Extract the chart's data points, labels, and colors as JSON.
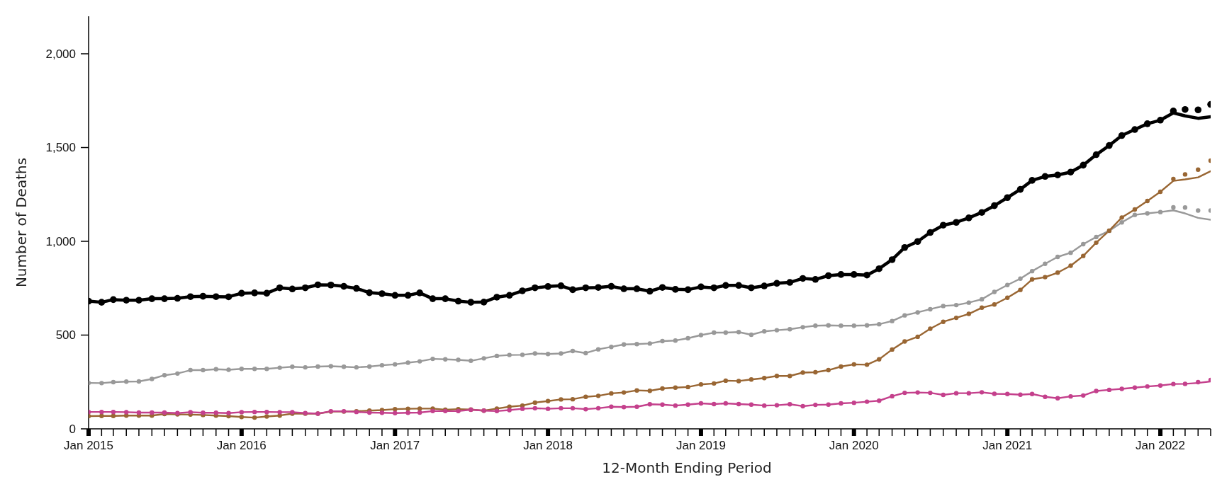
{
  "chart_data": {
    "type": "line",
    "xlabel": "12-Month Ending Period",
    "ylabel": "Number of Deaths",
    "marker": "circle",
    "x": [
      "2015-01",
      "2015-02",
      "2015-03",
      "2015-04",
      "2015-05",
      "2015-06",
      "2015-07",
      "2015-08",
      "2015-09",
      "2015-10",
      "2015-11",
      "2015-12",
      "2016-01",
      "2016-02",
      "2016-03",
      "2016-04",
      "2016-05",
      "2016-06",
      "2016-07",
      "2016-08",
      "2016-09",
      "2016-10",
      "2016-11",
      "2016-12",
      "2017-01",
      "2017-02",
      "2017-03",
      "2017-04",
      "2017-05",
      "2017-06",
      "2017-07",
      "2017-08",
      "2017-09",
      "2017-10",
      "2017-11",
      "2017-12",
      "2018-01",
      "2018-02",
      "2018-03",
      "2018-04",
      "2018-05",
      "2018-06",
      "2018-07",
      "2018-08",
      "2018-09",
      "2018-10",
      "2018-11",
      "2018-12",
      "2019-01",
      "2019-02",
      "2019-03",
      "2019-04",
      "2019-05",
      "2019-06",
      "2019-07",
      "2019-08",
      "2019-09",
      "2019-10",
      "2019-11",
      "2019-12",
      "2020-01",
      "2020-02",
      "2020-03",
      "2020-04",
      "2020-05",
      "2020-06",
      "2020-07",
      "2020-08",
      "2020-09",
      "2020-10",
      "2020-11",
      "2020-12",
      "2021-01",
      "2021-02",
      "2021-03",
      "2021-04",
      "2021-05",
      "2021-06",
      "2021-07",
      "2021-08",
      "2021-09",
      "2021-10",
      "2021-11",
      "2021-12",
      "2022-01",
      "2022-02",
      "2022-03",
      "2022-04",
      "2022-05"
    ],
    "xlim": [
      "2015-01",
      "2022-05"
    ],
    "xticks": [
      {
        "value": "2015-01",
        "label": "Jan 2015"
      },
      {
        "value": "2015-02",
        "label": null
      },
      {
        "value": "2015-03",
        "label": null
      },
      {
        "value": "2015-04",
        "label": null
      },
      {
        "value": "2015-05",
        "label": null
      },
      {
        "value": "2015-06",
        "label": null
      },
      {
        "value": "2015-07",
        "label": null
      },
      {
        "value": "2015-08",
        "label": null
      },
      {
        "value": "2015-09",
        "label": null
      },
      {
        "value": "2015-10",
        "label": null
      },
      {
        "value": "2015-11",
        "label": null
      },
      {
        "value": "2015-12",
        "label": null
      },
      {
        "value": "2016-01",
        "label": "Jan 2016"
      },
      {
        "value": "2016-02",
        "label": null
      },
      {
        "value": "2016-03",
        "label": null
      },
      {
        "value": "2016-04",
        "label": null
      },
      {
        "value": "2016-05",
        "label": null
      },
      {
        "value": "2016-06",
        "label": null
      },
      {
        "value": "2016-07",
        "label": null
      },
      {
        "value": "2016-08",
        "label": null
      },
      {
        "value": "2016-09",
        "label": null
      },
      {
        "value": "2016-10",
        "label": null
      },
      {
        "value": "2016-11",
        "label": null
      },
      {
        "value": "2016-12",
        "label": null
      },
      {
        "value": "2017-01",
        "label": "Jan 2017"
      },
      {
        "value": "2017-02",
        "label": null
      },
      {
        "value": "2017-03",
        "label": null
      },
      {
        "value": "2017-04",
        "label": null
      },
      {
        "value": "2017-05",
        "label": null
      },
      {
        "value": "2017-06",
        "label": null
      },
      {
        "value": "2017-07",
        "label": null
      },
      {
        "value": "2017-08",
        "label": null
      },
      {
        "value": "2017-09",
        "label": null
      },
      {
        "value": "2017-10",
        "label": null
      },
      {
        "value": "2017-11",
        "label": null
      },
      {
        "value": "2017-12",
        "label": null
      },
      {
        "value": "2018-01",
        "label": "Jan 2018"
      },
      {
        "value": "2018-02",
        "label": null
      },
      {
        "value": "2018-03",
        "label": null
      },
      {
        "value": "2018-04",
        "label": null
      },
      {
        "value": "2018-05",
        "label": null
      },
      {
        "value": "2018-06",
        "label": null
      },
      {
        "value": "2018-07",
        "label": null
      },
      {
        "value": "2018-08",
        "label": null
      },
      {
        "value": "2018-09",
        "label": null
      },
      {
        "value": "2018-10",
        "label": null
      },
      {
        "value": "2018-11",
        "label": null
      },
      {
        "value": "2018-12",
        "label": null
      },
      {
        "value": "2019-01",
        "label": "Jan 2019"
      },
      {
        "value": "2019-02",
        "label": null
      },
      {
        "value": "2019-03",
        "label": null
      },
      {
        "value": "2019-04",
        "label": null
      },
      {
        "value": "2019-05",
        "label": null
      },
      {
        "value": "2019-06",
        "label": null
      },
      {
        "value": "2019-07",
        "label": null
      },
      {
        "value": "2019-08",
        "label": null
      },
      {
        "value": "2019-09",
        "label": null
      },
      {
        "value": "2019-10",
        "label": null
      },
      {
        "value": "2019-11",
        "label": null
      },
      {
        "value": "2019-12",
        "label": null
      },
      {
        "value": "2020-01",
        "label": "Jan 2020"
      },
      {
        "value": "2020-02",
        "label": null
      },
      {
        "value": "2020-03",
        "label": null
      },
      {
        "value": "2020-04",
        "label": null
      },
      {
        "value": "2020-05",
        "label": null
      },
      {
        "value": "2020-06",
        "label": null
      },
      {
        "value": "2020-07",
        "label": null
      },
      {
        "value": "2020-08",
        "label": null
      },
      {
        "value": "2020-09",
        "label": null
      },
      {
        "value": "2020-10",
        "label": null
      },
      {
        "value": "2020-11",
        "label": null
      },
      {
        "value": "2020-12",
        "label": null
      },
      {
        "value": "2021-01",
        "label": "Jan 2021"
      },
      {
        "value": "2021-02",
        "label": null
      },
      {
        "value": "2021-03",
        "label": null
      },
      {
        "value": "2021-04",
        "label": null
      },
      {
        "value": "2021-05",
        "label": null
      },
      {
        "value": "2021-06",
        "label": null
      },
      {
        "value": "2021-07",
        "label": null
      },
      {
        "value": "2021-08",
        "label": null
      },
      {
        "value": "2021-09",
        "label": null
      },
      {
        "value": "2021-10",
        "label": null
      },
      {
        "value": "2021-11",
        "label": null
      },
      {
        "value": "2021-12",
        "label": null
      },
      {
        "value": "2022-01",
        "label": "Jan 2022"
      },
      {
        "value": "2022-02",
        "label": null
      },
      {
        "value": "2022-03",
        "label": null
      },
      {
        "value": "2022-04",
        "label": null
      },
      {
        "value": "2022-05",
        "label": null
      }
    ],
    "ylim": [
      0,
      2200
    ],
    "yticks": [
      0,
      500,
      {
        "value": 1000,
        "label": "1,000"
      },
      {
        "value": 1500,
        "label": "1,500"
      },
      {
        "value": 2000,
        "label": "2,000"
      }
    ],
    "series": [
      {
        "type": "line",
        "marker": "none",
        "color": "#999999",
        "values": [
          245,
          244,
          249,
          252,
          253,
          266,
          286,
          295,
          313,
          313,
          318,
          315,
          320,
          320,
          320,
          326,
          331,
          328,
          332,
          334,
          331,
          328,
          332,
          339,
          344,
          353,
          360,
          373,
          371,
          368,
          363,
          376,
          389,
          394,
          395,
          402,
          399,
          402,
          415,
          404,
          424,
          437,
          450,
          452,
          455,
          468,
          471,
          483,
          500,
          513,
          513,
          516,
          502,
          520,
          526,
          531,
          542,
          550,
          552,
          550,
          550,
          552,
          558,
          575,
          605,
          621,
          638,
          655,
          660,
          673,
          691,
          730,
          767,
          801,
          841,
          880,
          917,
          939,
          985,
          1023,
          1056,
          1101,
          1141,
          1149,
          1156,
          1165,
          1149,
          1125,
          1115
        ]
      },
      {
        "type": "scatter",
        "color": "#999999",
        "values": [
          245,
          244,
          249,
          252,
          253,
          266,
          286,
          295,
          313,
          313,
          318,
          315,
          320,
          320,
          320,
          326,
          331,
          328,
          332,
          334,
          331,
          328,
          332,
          339,
          344,
          353,
          360,
          373,
          371,
          368,
          363,
          376,
          389,
          394,
          395,
          402,
          399,
          402,
          415,
          404,
          424,
          437,
          450,
          452,
          455,
          468,
          471,
          483,
          500,
          513,
          513,
          516,
          502,
          520,
          526,
          531,
          542,
          550,
          552,
          550,
          550,
          552,
          558,
          575,
          605,
          621,
          638,
          655,
          660,
          673,
          691,
          730,
          767,
          801,
          841,
          880,
          917,
          939,
          985,
          1023,
          1056,
          1101,
          1141,
          1149,
          1156,
          1181,
          1180,
          1164,
          1164
        ]
      },
      {
        "type": "line",
        "marker": "none",
        "color": "#996633",
        "values": [
          68,
          69,
          69,
          71,
          71,
          71,
          79,
          77,
          76,
          74,
          71,
          68,
          63,
          60,
          66,
          71,
          81,
          81,
          81,
          92,
          92,
          94,
          97,
          100,
          105,
          107,
          108,
          108,
          102,
          105,
          103,
          97,
          108,
          118,
          124,
          140,
          148,
          157,
          158,
          171,
          176,
          189,
          194,
          205,
          203,
          215,
          220,
          223,
          237,
          242,
          257,
          255,
          263,
          271,
          282,
          282,
          300,
          302,
          313,
          332,
          344,
          342,
          371,
          423,
          466,
          491,
          534,
          571,
          592,
          613,
          646,
          663,
          699,
          741,
          797,
          809,
          833,
          870,
          922,
          993,
          1057,
          1127,
          1170,
          1215,
          1264,
          1322,
          1330,
          1341,
          1374
        ]
      },
      {
        "type": "scatter",
        "color": "#996633",
        "values": [
          68,
          69,
          69,
          71,
          71,
          71,
          79,
          77,
          76,
          74,
          71,
          68,
          63,
          60,
          66,
          71,
          81,
          81,
          81,
          92,
          92,
          94,
          97,
          100,
          105,
          107,
          108,
          108,
          102,
          105,
          103,
          97,
          108,
          118,
          124,
          140,
          148,
          157,
          158,
          171,
          176,
          189,
          194,
          205,
          203,
          215,
          220,
          223,
          237,
          242,
          257,
          255,
          263,
          271,
          282,
          282,
          300,
          302,
          313,
          332,
          344,
          342,
          371,
          423,
          466,
          491,
          534,
          571,
          592,
          613,
          646,
          663,
          699,
          741,
          797,
          809,
          833,
          870,
          922,
          993,
          1057,
          1127,
          1170,
          1215,
          1264,
          1332,
          1357,
          1382,
          1430
        ]
      },
      {
        "type": "line",
        "marker": "none",
        "color": "#c4408c",
        "values": [
          90,
          90,
          90,
          89,
          87,
          87,
          87,
          84,
          89,
          86,
          86,
          84,
          89,
          90,
          90,
          89,
          89,
          84,
          81,
          94,
          94,
          90,
          87,
          86,
          84,
          86,
          87,
          95,
          95,
          95,
          102,
          97,
          95,
          100,
          107,
          110,
          107,
          110,
          110,
          105,
          110,
          118,
          116,
          118,
          131,
          129,
          124,
          129,
          136,
          132,
          136,
          132,
          129,
          124,
          126,
          131,
          121,
          128,
          129,
          136,
          139,
          145,
          150,
          174,
          192,
          194,
          192,
          181,
          190,
          190,
          195,
          187,
          186,
          182,
          186,
          171,
          163,
          173,
          178,
          202,
          208,
          213,
          220,
          226,
          231,
          239,
          240,
          245,
          253
        ]
      },
      {
        "type": "scatter",
        "color": "#c4408c",
        "values": [
          90,
          90,
          90,
          89,
          87,
          87,
          87,
          84,
          89,
          86,
          86,
          84,
          89,
          90,
          90,
          89,
          89,
          84,
          81,
          94,
          94,
          90,
          87,
          86,
          84,
          86,
          87,
          95,
          95,
          95,
          102,
          97,
          95,
          100,
          107,
          110,
          107,
          110,
          110,
          105,
          110,
          118,
          116,
          118,
          131,
          129,
          124,
          129,
          136,
          132,
          136,
          132,
          129,
          124,
          126,
          131,
          121,
          128,
          129,
          136,
          139,
          145,
          150,
          174,
          192,
          194,
          192,
          181,
          190,
          190,
          195,
          187,
          186,
          182,
          186,
          171,
          163,
          173,
          178,
          202,
          208,
          213,
          220,
          226,
          231,
          239,
          240,
          249,
          261
        ]
      },
      {
        "type": "line",
        "marker": "none",
        "color": "#000000",
        "values": [
          681,
          675,
          689,
          686,
          686,
          694,
          694,
          696,
          705,
          707,
          705,
          704,
          723,
          725,
          723,
          752,
          746,
          752,
          768,
          767,
          760,
          749,
          726,
          721,
          712,
          712,
          725,
          694,
          694,
          681,
          675,
          676,
          702,
          712,
          736,
          752,
          759,
          763,
          742,
          752,
          754,
          760,
          747,
          747,
          734,
          754,
          744,
          742,
          757,
          752,
          765,
          765,
          752,
          762,
          776,
          781,
          802,
          797,
          817,
          823,
          823,
          820,
          854,
          902,
          967,
          999,
          1047,
          1086,
          1101,
          1125,
          1154,
          1190,
          1233,
          1277,
          1325,
          1346,
          1354,
          1369,
          1406,
          1462,
          1511,
          1564,
          1596,
          1627,
          1646,
          1685,
          1669,
          1656,
          1664
        ]
      },
      {
        "type": "scatter",
        "color": "#000000",
        "values": [
          681,
          675,
          689,
          686,
          686,
          694,
          694,
          696,
          705,
          707,
          705,
          704,
          723,
          725,
          723,
          752,
          746,
          752,
          768,
          767,
          760,
          749,
          726,
          721,
          712,
          712,
          725,
          694,
          694,
          681,
          675,
          676,
          702,
          712,
          736,
          752,
          759,
          763,
          742,
          752,
          754,
          760,
          747,
          747,
          734,
          754,
          744,
          742,
          757,
          752,
          765,
          765,
          752,
          762,
          776,
          781,
          802,
          797,
          817,
          823,
          823,
          820,
          854,
          902,
          967,
          999,
          1047,
          1086,
          1101,
          1125,
          1154,
          1190,
          1233,
          1277,
          1325,
          1346,
          1354,
          1369,
          1406,
          1462,
          1511,
          1564,
          1596,
          1627,
          1646,
          1695,
          1703,
          1701,
          1730
        ]
      }
    ]
  }
}
